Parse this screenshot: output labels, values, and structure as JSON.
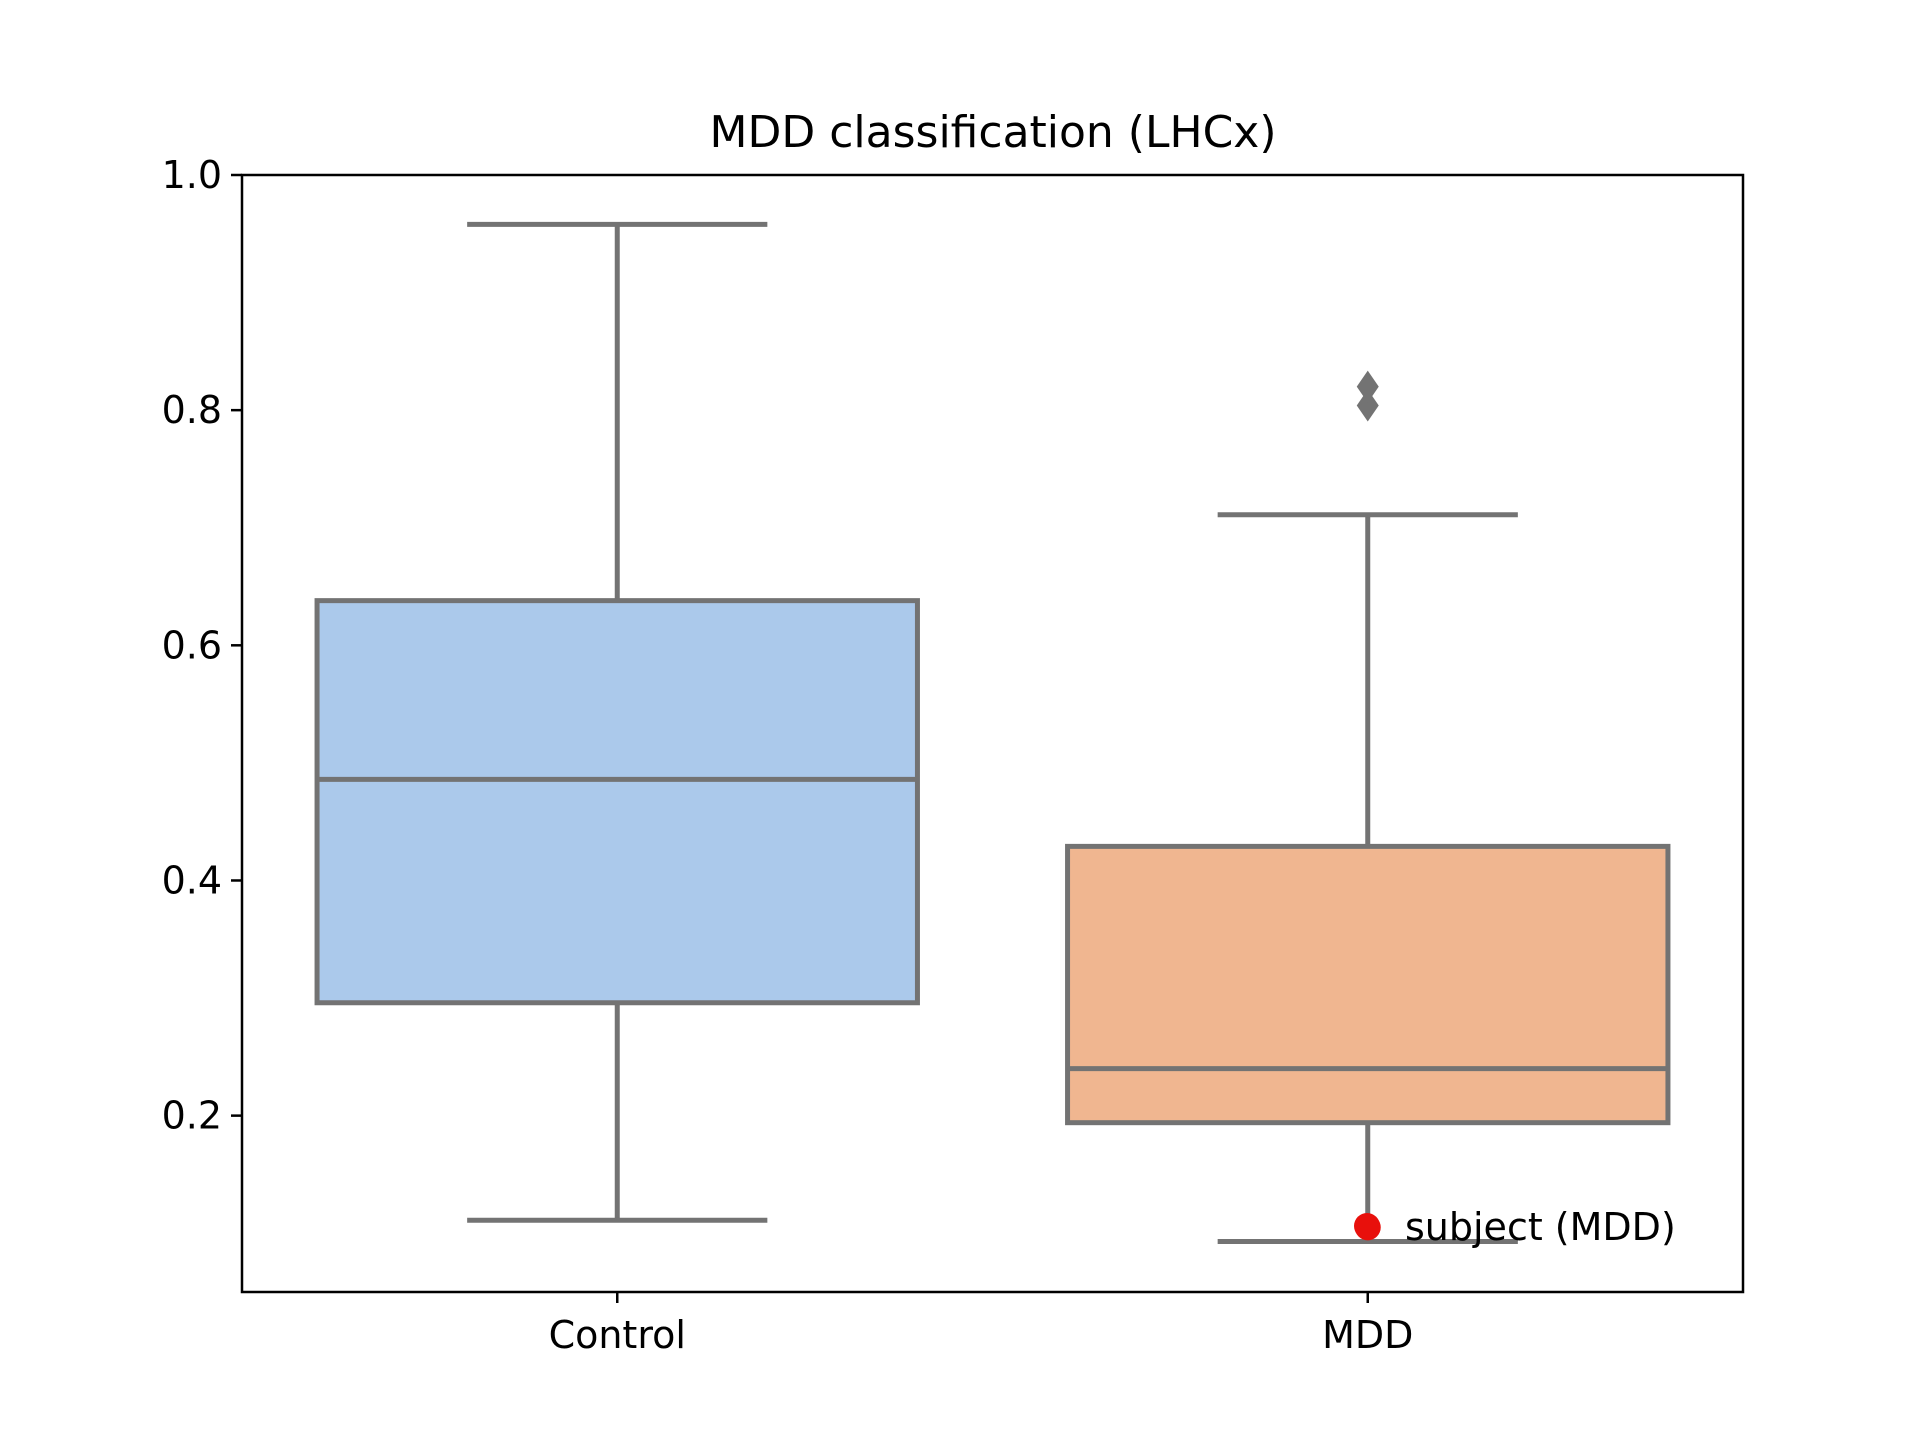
{
  "chart_data": {
    "type": "box",
    "title": "MDD classification (LHCx)",
    "xlabel": "",
    "ylabel": "",
    "categories": [
      "Control",
      "MDD"
    ],
    "ylim": [
      0.05,
      1.0
    ],
    "yticks": [
      0.2,
      0.4,
      0.6,
      0.8,
      1.0
    ],
    "ytick_labels": [
      "0.2",
      "0.4",
      "0.6",
      "0.8",
      "1.0"
    ],
    "grid": false,
    "boxes": [
      {
        "category": "Control",
        "whisker_low": 0.111,
        "q1": 0.296,
        "median": 0.486,
        "q3": 0.638,
        "whisker_high": 0.958,
        "fliers": [],
        "color": "#abc9eb"
      },
      {
        "category": "MDD",
        "whisker_low": 0.093,
        "q1": 0.194,
        "median": 0.24,
        "q3": 0.429,
        "whisker_high": 0.711,
        "fliers": [
          0.804,
          0.82
        ],
        "color": "#f0b690"
      }
    ],
    "subject": {
      "name": "subject (MDD)",
      "category": "MDD",
      "value": 0.105,
      "color": "#e8100c"
    },
    "legend": {
      "placement": "lower-right",
      "entries": [
        "subject (MDD)"
      ]
    },
    "line_color": "#737373"
  }
}
